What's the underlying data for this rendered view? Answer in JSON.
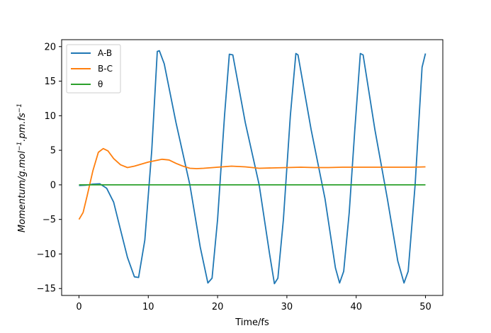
{
  "chart_data": {
    "type": "line",
    "xlabel": "Time/fs",
    "ylabel_parts": {
      "main": "Momentum/g.mol",
      "sup1": "−1",
      "mid": ".pm.fs",
      "sup2": "−1"
    },
    "xlim": [
      -2.5,
      52.5
    ],
    "ylim": [
      -16,
      21
    ],
    "x_ticks": [
      0,
      10,
      20,
      30,
      40,
      50
    ],
    "y_ticks": [
      -15,
      -10,
      -5,
      0,
      5,
      10,
      15,
      20
    ],
    "x_tick_labels": [
      "0",
      "10",
      "20",
      "30",
      "40",
      "50"
    ],
    "y_tick_labels": [
      "−15",
      "−10",
      "−5",
      "0",
      "5",
      "10",
      "15",
      "20"
    ],
    "legend_position": "top-left",
    "series": [
      {
        "name": "A-B",
        "color": "#1f77b4",
        "points": [
          [
            0,
            -0.1
          ],
          [
            1,
            -0.05
          ],
          [
            2,
            0.1
          ],
          [
            3,
            0.15
          ],
          [
            4,
            -0.5
          ],
          [
            5,
            -2.5
          ],
          [
            6,
            -6.5
          ],
          [
            7,
            -10.5
          ],
          [
            8,
            -13.3
          ],
          [
            8.6,
            -13.4
          ],
          [
            9.5,
            -8
          ],
          [
            10.5,
            5
          ],
          [
            11.3,
            19.3
          ],
          [
            11.6,
            19.4
          ],
          [
            12.3,
            17.5
          ],
          [
            14,
            9
          ],
          [
            16,
            0
          ],
          [
            17.5,
            -9
          ],
          [
            18.6,
            -14.2
          ],
          [
            19.2,
            -13.5
          ],
          [
            20,
            -5
          ],
          [
            21,
            10
          ],
          [
            21.7,
            18.9
          ],
          [
            22.2,
            18.8
          ],
          [
            24,
            9
          ],
          [
            26,
            0
          ],
          [
            27.5,
            -10
          ],
          [
            28.2,
            -14.3
          ],
          [
            28.7,
            -13.5
          ],
          [
            29.5,
            -5
          ],
          [
            30.5,
            10
          ],
          [
            31.3,
            19
          ],
          [
            31.6,
            18.8
          ],
          [
            33.5,
            8
          ],
          [
            35.5,
            -2
          ],
          [
            37,
            -12
          ],
          [
            37.6,
            -14.2
          ],
          [
            38.2,
            -12.5
          ],
          [
            39,
            -4
          ],
          [
            39.8,
            8
          ],
          [
            40.6,
            19
          ],
          [
            41,
            18.8
          ],
          [
            42.7,
            8
          ],
          [
            44.5,
            -2
          ],
          [
            46,
            -11
          ],
          [
            46.9,
            -14.2
          ],
          [
            47.5,
            -12.5
          ],
          [
            48.5,
            0
          ],
          [
            49.5,
            17
          ],
          [
            50,
            19
          ]
        ]
      },
      {
        "name": "B-C",
        "color": "#ff7f0e",
        "points": [
          [
            0,
            -5
          ],
          [
            0.6,
            -4
          ],
          [
            1.2,
            -1.5
          ],
          [
            2,
            2
          ],
          [
            2.8,
            4.7
          ],
          [
            3.5,
            5.25
          ],
          [
            4.2,
            4.9
          ],
          [
            5,
            3.8
          ],
          [
            6,
            2.9
          ],
          [
            7,
            2.5
          ],
          [
            8,
            2.7
          ],
          [
            9,
            3
          ],
          [
            10,
            3.3
          ],
          [
            11,
            3.5
          ],
          [
            12,
            3.7
          ],
          [
            13,
            3.6
          ],
          [
            14,
            3.1
          ],
          [
            15,
            2.7
          ],
          [
            16,
            2.4
          ],
          [
            17,
            2.35
          ],
          [
            18,
            2.4
          ],
          [
            20,
            2.55
          ],
          [
            22,
            2.7
          ],
          [
            24,
            2.6
          ],
          [
            26,
            2.4
          ],
          [
            28,
            2.45
          ],
          [
            30,
            2.5
          ],
          [
            32,
            2.55
          ],
          [
            34,
            2.5
          ],
          [
            36,
            2.5
          ],
          [
            38,
            2.55
          ],
          [
            40,
            2.55
          ],
          [
            42,
            2.55
          ],
          [
            44,
            2.55
          ],
          [
            46,
            2.55
          ],
          [
            48,
            2.55
          ],
          [
            50,
            2.6
          ]
        ]
      },
      {
        "name": "θ",
        "color": "#2ca02c",
        "points": [
          [
            0,
            0
          ],
          [
            10,
            0
          ],
          [
            20,
            0
          ],
          [
            30,
            0
          ],
          [
            40,
            0
          ],
          [
            50,
            0
          ]
        ]
      }
    ]
  }
}
